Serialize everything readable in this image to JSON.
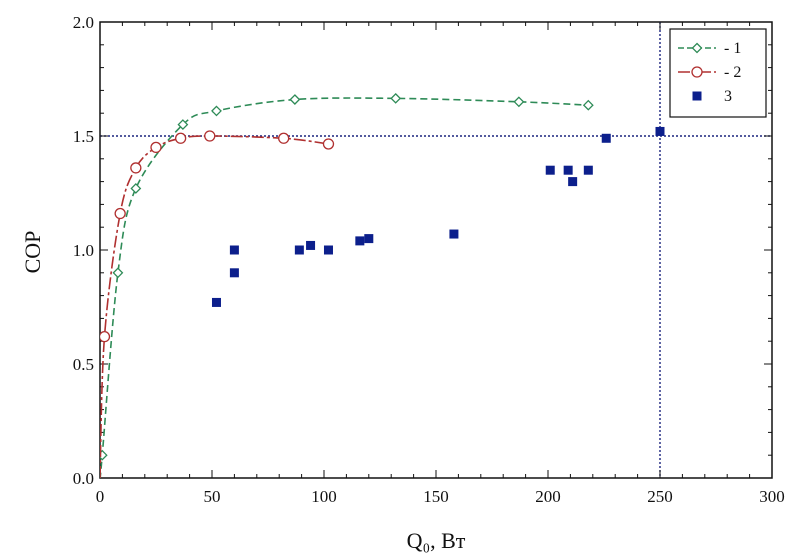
{
  "chart_data": {
    "type": "scatter",
    "title": "",
    "xlabel": "Q₀, Вт",
    "ylabel": "COP",
    "xlim": [
      0,
      300
    ],
    "ylim": [
      0,
      2.0
    ],
    "xticks": [
      "0",
      "50",
      "100",
      "150",
      "200",
      "250",
      "300"
    ],
    "yticks": [
      "0.0",
      "0.5",
      "1.0",
      "1.5",
      "2.0"
    ],
    "grid": false,
    "legend_position": "top-right",
    "reference_lines": {
      "y": 1.5,
      "x": 250
    },
    "series": [
      {
        "name": "1",
        "legend_label": "- 1",
        "style": "dashed-line-diamond",
        "color": "#2e8b57",
        "x": [
          1,
          8,
          16,
          37,
          52,
          87,
          132,
          187,
          218
        ],
        "y": [
          0.1,
          0.9,
          1.27,
          1.55,
          1.61,
          1.66,
          1.665,
          1.65,
          1.635
        ]
      },
      {
        "name": "2",
        "legend_label": "- 2",
        "style": "dashdot-line-circle",
        "color": "#b03030",
        "x": [
          2,
          9,
          16,
          25,
          36,
          49,
          82,
          102
        ],
        "y": [
          0.62,
          1.16,
          1.36,
          1.45,
          1.49,
          1.5,
          1.49,
          1.465
        ]
      },
      {
        "name": "3",
        "legend_label": "3",
        "style": "square-marker",
        "color": "#0c1f8c",
        "x": [
          52,
          60,
          60,
          89,
          94,
          102,
          116,
          120,
          158,
          201,
          209,
          211,
          218,
          226,
          250
        ],
        "y": [
          0.77,
          1.0,
          0.9,
          1.0,
          1.02,
          1.0,
          1.04,
          1.05,
          1.07,
          1.35,
          1.35,
          1.3,
          1.35,
          1.49,
          1.52
        ]
      }
    ]
  }
}
